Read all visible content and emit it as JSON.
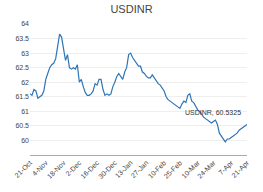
{
  "chart_data": {
    "type": "line",
    "title": "USDINR",
    "annotation": "USDINR, 60.5325",
    "color": "#2e75b6",
    "grid": true,
    "ylim": [
      59.5,
      64
    ],
    "yticks": [
      60,
      60.5,
      61,
      61.5,
      62,
      62.5,
      63,
      63.5,
      64
    ],
    "categories": [
      "21-Oct",
      null,
      null,
      null,
      null,
      null,
      null,
      null,
      "4-Nov",
      null,
      null,
      null,
      null,
      null,
      null,
      null,
      null,
      "18-Nov",
      null,
      null,
      null,
      null,
      null,
      null,
      null,
      "2-Dec",
      null,
      null,
      null,
      null,
      null,
      null,
      null,
      null,
      "16-Dec",
      null,
      null,
      null,
      null,
      null,
      null,
      null,
      null,
      "30-Dec",
      null,
      null,
      null,
      null,
      null,
      null,
      null,
      "13-Jan",
      null,
      null,
      null,
      null,
      null,
      null,
      null,
      "27-Jan",
      null,
      null,
      null,
      null,
      null,
      null,
      null,
      null,
      "10-Feb",
      null,
      null,
      null,
      null,
      null,
      null,
      null,
      "25-Feb",
      null,
      null,
      null,
      null,
      null,
      null,
      null,
      null,
      "10-Mar",
      null,
      null,
      null,
      null,
      null,
      null,
      null,
      "24-Mar",
      null,
      null,
      null,
      null,
      null,
      null,
      null,
      null,
      "7-Apr",
      null,
      null,
      null,
      null,
      null,
      null,
      null,
      "21-Apr"
    ],
    "values": [
      61.6,
      61.55,
      61.75,
      61.7,
      61.45,
      61.5,
      61.55,
      61.7,
      62.1,
      62.3,
      62.5,
      62.6,
      62.65,
      62.8,
      63.2,
      63.65,
      63.55,
      63.1,
      62.75,
      62.95,
      62.5,
      62.45,
      62.5,
      62.45,
      62.6,
      62.0,
      62.1,
      61.85,
      61.65,
      61.55,
      61.55,
      61.6,
      61.7,
      61.95,
      61.9,
      62.1,
      62.1,
      61.75,
      61.55,
      61.6,
      61.55,
      61.6,
      61.85,
      62.0,
      62.2,
      62.3,
      62.2,
      62.1,
      62.35,
      62.5,
      62.95,
      63.0,
      62.85,
      62.75,
      62.65,
      62.55,
      62.55,
      62.35,
      62.3,
      62.2,
      62.15,
      62.15,
      62.25,
      62.15,
      62.05,
      61.95,
      61.9,
      61.8,
      61.7,
      61.5,
      61.4,
      61.35,
      61.3,
      61.25,
      61.2,
      61.15,
      61.1,
      61.25,
      61.35,
      61.3,
      61.55,
      61.6,
      61.35,
      61.3,
      61.15,
      61.05,
      61.0,
      60.9,
      60.8,
      60.75,
      60.7,
      60.65,
      60.6,
      60.65,
      60.7,
      60.55,
      60.25,
      60.15,
      60.05,
      59.95,
      60.05,
      60.05,
      60.1,
      60.15,
      60.2,
      60.25,
      60.35,
      60.4,
      60.45,
      60.5,
      60.55
    ]
  }
}
